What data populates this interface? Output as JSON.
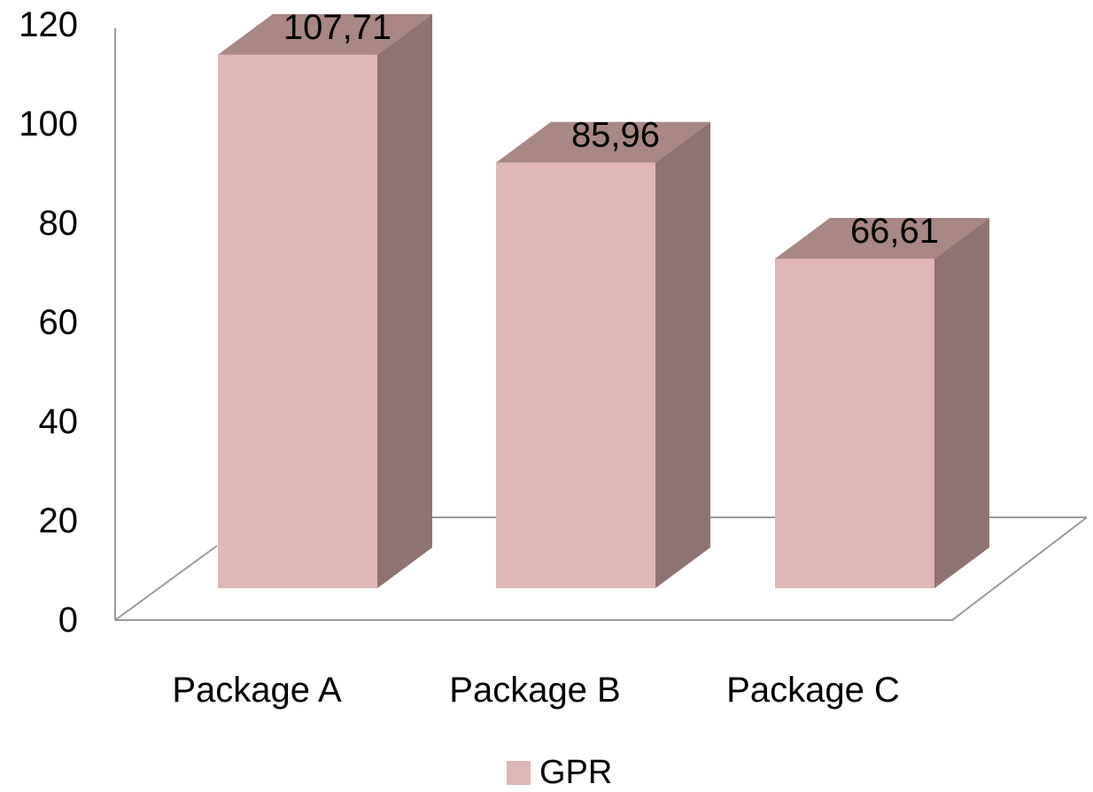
{
  "chart_data": {
    "type": "bar",
    "style": "3d",
    "categories": [
      "Package A",
      "Package B",
      "Package C"
    ],
    "series": [
      {
        "name": "GPR",
        "values": [
          107.71,
          85.96,
          66.61
        ],
        "labels": [
          "107,71",
          "85,96",
          "66,61"
        ]
      }
    ],
    "title": "",
    "xlabel": "",
    "ylabel": "",
    "ylim": [
      0,
      120
    ],
    "yticks": [
      "0",
      "20",
      "40",
      "60",
      "80",
      "100",
      "120"
    ],
    "grid": false,
    "legend_position": "bottom"
  },
  "colors": {
    "front": "#e0b6b6",
    "side": "#8f7372",
    "top": "#a98785",
    "axis": "#9a9a9a"
  }
}
